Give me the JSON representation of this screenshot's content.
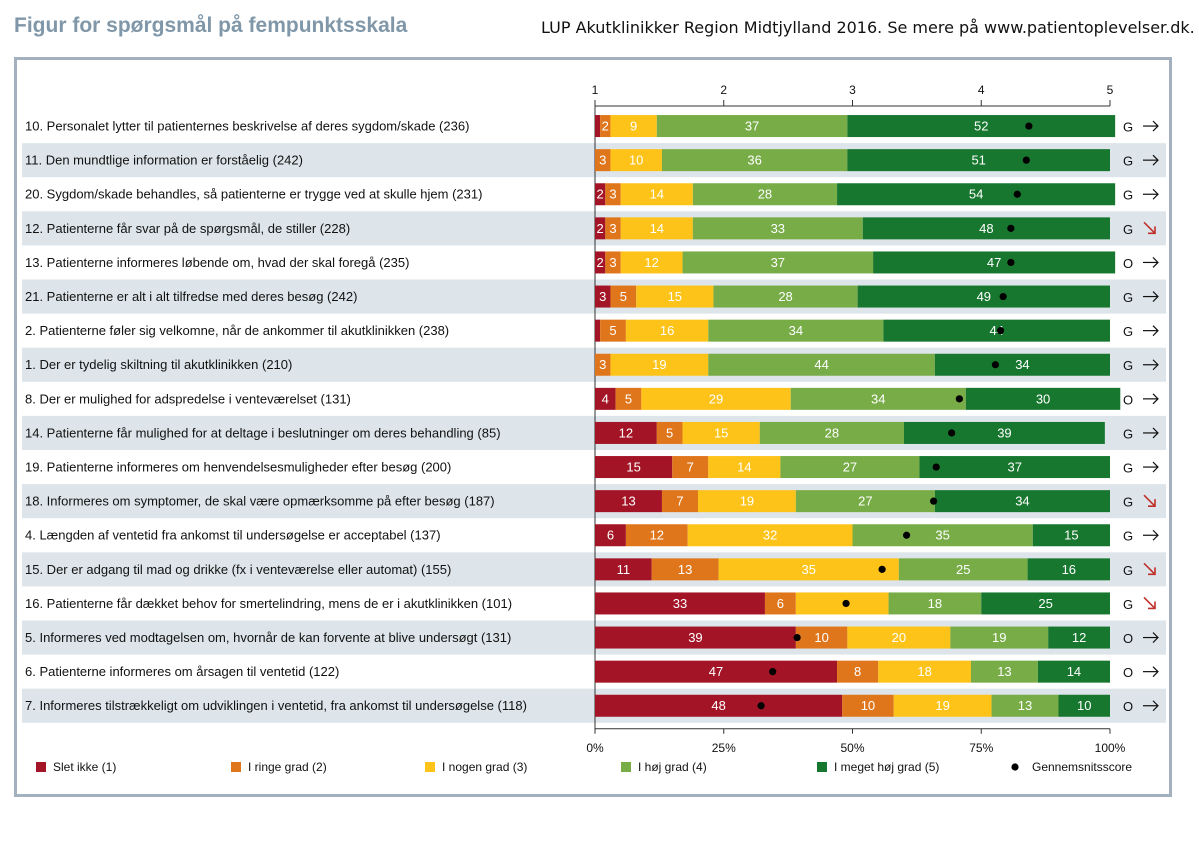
{
  "header": {
    "title": "Figur for spørgsmål på fempunktsskala",
    "subtitle": "LUP Akutklinikker Region Midtjylland 2016. Se mere på www.patientoplevelser.dk."
  },
  "colors": {
    "slet_ikke": "#a31526",
    "ringe": "#e0761b",
    "nogen": "#fec319",
    "hoj": "#77ac47",
    "meget_hoj": "#17772f",
    "row_shade": "#dde5ea",
    "arrow_flat": "#111111",
    "arrow_down": "#c0302b"
  },
  "chart_data": {
    "type": "bar",
    "orientation": "horizontal-stacked-100",
    "top_axis": {
      "ticks": [
        "1",
        "2",
        "3",
        "4",
        "5"
      ],
      "range": [
        1,
        5
      ]
    },
    "bottom_axis": {
      "ticks": [
        "0%",
        "25%",
        "50%",
        "75%",
        "100%"
      ],
      "range": [
        0,
        100
      ]
    },
    "legend": {
      "position": "bottom",
      "items": [
        {
          "key": "slet_ikke",
          "label": "Slet ikke (1)"
        },
        {
          "key": "ringe",
          "label": "I ringe grad (2)"
        },
        {
          "key": "nogen",
          "label": "I nogen grad (3)"
        },
        {
          "key": "hoj",
          "label": "I høj grad (4)"
        },
        {
          "key": "meget_hoj",
          "label": "I meget høj grad (5)"
        },
        {
          "key": "mean",
          "label": "Gennemsnitsscore"
        }
      ]
    },
    "series_order": [
      "slet_ikke",
      "ringe",
      "nogen",
      "hoj",
      "meget_hoj"
    ],
    "rows": [
      {
        "label": "10. Personalet lytter til patienternes beskrivelse af deres sygdom/skade (236)",
        "values": [
          1,
          2,
          9,
          37,
          52
        ],
        "labels": [
          "",
          "2",
          "9",
          "37",
          "52"
        ],
        "mean": 4.37,
        "status": "G",
        "trend": "flat"
      },
      {
        "label": "11. Den mundtlige information er forståelig (242)",
        "values": [
          0,
          3,
          10,
          36,
          51
        ],
        "labels": [
          "",
          "3",
          "10",
          "36",
          "51"
        ],
        "mean": 4.35,
        "status": "G",
        "trend": "flat"
      },
      {
        "label": "20. Sygdom/skade behandles, så patienterne er trygge ved at skulle hjem (231)",
        "values": [
          2,
          3,
          14,
          28,
          54
        ],
        "labels": [
          "2",
          "3",
          "14",
          "28",
          "54"
        ],
        "mean": 4.28,
        "status": "G",
        "trend": "flat"
      },
      {
        "label": "12. Patienterne får svar på de spørgsmål, de stiller (228)",
        "values": [
          2,
          3,
          14,
          33,
          48
        ],
        "labels": [
          "2",
          "3",
          "14",
          "33",
          "48"
        ],
        "mean": 4.23,
        "status": "G",
        "trend": "down"
      },
      {
        "label": "13. Patienterne informeres løbende om, hvad der skal foregå (235)",
        "values": [
          2,
          3,
          12,
          37,
          47
        ],
        "labels": [
          "2",
          "3",
          "12",
          "37",
          "47"
        ],
        "mean": 4.23,
        "status": "O",
        "trend": "flat"
      },
      {
        "label": "21. Patienterne er alt i alt tilfredse med deres besøg (242)",
        "values": [
          3,
          5,
          15,
          28,
          49
        ],
        "labels": [
          "3",
          "5",
          "15",
          "28",
          "49"
        ],
        "mean": 4.17,
        "status": "G",
        "trend": "flat"
      },
      {
        "label": "2. Patienterne føler sig velkomne, når de ankommer til akutklinikken (238)",
        "values": [
          1,
          5,
          16,
          34,
          44
        ],
        "labels": [
          "",
          "5",
          "16",
          "34",
          "44"
        ],
        "mean": 4.15,
        "status": "G",
        "trend": "flat"
      },
      {
        "label": "1. Der er tydelig skiltning til akutklinikken (210)",
        "values": [
          0,
          3,
          19,
          44,
          34
        ],
        "labels": [
          "",
          "3",
          "19",
          "44",
          "34"
        ],
        "mean": 4.11,
        "status": "G",
        "trend": "flat"
      },
      {
        "label": "8. Der er mulighed for adspredelse i venteværelset (131)",
        "values": [
          4,
          5,
          29,
          34,
          30
        ],
        "labels": [
          "4",
          "5",
          "29",
          "34",
          "30"
        ],
        "mean": 3.83,
        "status": "O",
        "trend": "flat"
      },
      {
        "label": "14. Patienterne får mulighed for at deltage i beslutninger om deres behandling (85)",
        "values": [
          12,
          5,
          15,
          28,
          39
        ],
        "labels": [
          "12",
          "5",
          "15",
          "28",
          "39"
        ],
        "mean": 3.77,
        "status": "G",
        "trend": "flat"
      },
      {
        "label": "19. Patienterne informeres om henvendelsesmuligheder efter besøg (200)",
        "values": [
          15,
          7,
          14,
          27,
          37
        ],
        "labels": [
          "15",
          "7",
          "14",
          "27",
          "37"
        ],
        "mean": 3.65,
        "status": "G",
        "trend": "flat"
      },
      {
        "label": "18. Informeres om symptomer, de skal være opmærksomme på efter besøg (187)",
        "values": [
          13,
          7,
          19,
          27,
          34
        ],
        "labels": [
          "13",
          "7",
          "19",
          "27",
          "34"
        ],
        "mean": 3.63,
        "status": "G",
        "trend": "down"
      },
      {
        "label": "4. Længden af ventetid fra ankomst til undersøgelse er acceptabel (137)",
        "values": [
          6,
          12,
          32,
          35,
          15
        ],
        "labels": [
          "6",
          "12",
          "32",
          "35",
          "15"
        ],
        "mean": 3.42,
        "status": "G",
        "trend": "flat"
      },
      {
        "label": "15. Der er adgang til mad og drikke (fx i venteværelse eller automat) (155)",
        "values": [
          11,
          13,
          35,
          25,
          16
        ],
        "labels": [
          "11",
          "13",
          "35",
          "25",
          "16"
        ],
        "mean": 3.23,
        "status": "G",
        "trend": "down"
      },
      {
        "label": "16. Patienterne får dækket behov for smertelindring, mens de er i akutklinikken (101)",
        "values": [
          33,
          6,
          18,
          18,
          25
        ],
        "labels": [
          "33",
          "6",
          "",
          "18",
          "25"
        ],
        "mean": 2.95,
        "status": "G",
        "trend": "down"
      },
      {
        "label": "5. Informeres ved modtagelsen om, hvornår de kan forvente at blive undersøgt (131)",
        "values": [
          39,
          10,
          20,
          19,
          12
        ],
        "labels": [
          "39",
          "10",
          "20",
          "19",
          "12"
        ],
        "mean": 2.57,
        "status": "O",
        "trend": "flat"
      },
      {
        "label": "6. Patienterne informeres om årsagen til ventetid (122)",
        "values": [
          47,
          8,
          18,
          13,
          14
        ],
        "labels": [
          "47",
          "8",
          "18",
          "13",
          "14"
        ],
        "mean": 2.38,
        "status": "O",
        "trend": "flat"
      },
      {
        "label": "7.  Informeres tilstrækkeligt om udviklingen i ventetid, fra ankomst til undersøgelse (118)",
        "values": [
          48,
          10,
          19,
          13,
          10
        ],
        "labels": [
          "48",
          "10",
          "19",
          "13",
          "10"
        ],
        "mean": 2.29,
        "status": "O",
        "trend": "flat"
      }
    ]
  }
}
